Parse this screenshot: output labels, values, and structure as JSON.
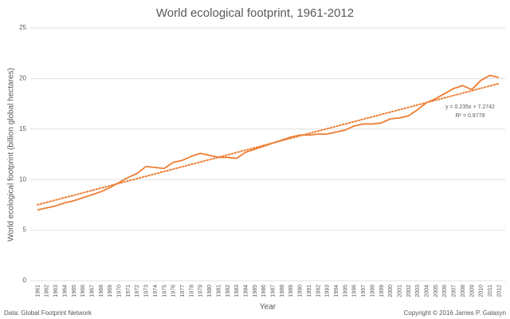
{
  "chart_data": {
    "type": "line",
    "title": "World ecological footprint, 1961-2012",
    "y_label": "World ecological footprint (billion global hectares)",
    "x_label": "Year",
    "source": "Data: Global Footprint Network",
    "copyright": "Copyright © 2016 James P. Galasyn",
    "x": [
      1961,
      1962,
      1963,
      1964,
      1965,
      1966,
      1967,
      1968,
      1969,
      1970,
      1971,
      1972,
      1973,
      1974,
      1975,
      1976,
      1977,
      1978,
      1979,
      1980,
      1981,
      1982,
      1983,
      1984,
      1985,
      1986,
      1987,
      1988,
      1989,
      1990,
      1991,
      1992,
      1993,
      1994,
      1995,
      1996,
      1997,
      1998,
      1999,
      2000,
      2001,
      2002,
      2003,
      2004,
      2005,
      2006,
      2007,
      2008,
      2009,
      2010,
      2011,
      2012
    ],
    "series": [
      {
        "name": "World ecological footprint",
        "color": "#ed7d31",
        "values": [
          7.0,
          7.2,
          7.4,
          7.7,
          7.9,
          8.2,
          8.5,
          8.8,
          9.2,
          9.7,
          10.2,
          10.6,
          11.3,
          11.2,
          11.1,
          11.7,
          11.9,
          12.3,
          12.6,
          12.4,
          12.2,
          12.2,
          12.1,
          12.7,
          13.0,
          13.3,
          13.6,
          13.9,
          14.2,
          14.4,
          14.4,
          14.5,
          14.5,
          14.7,
          14.9,
          15.3,
          15.5,
          15.5,
          15.6,
          16.0,
          16.1,
          16.3,
          16.9,
          17.6,
          18.0,
          18.5,
          19.0,
          19.3,
          18.9,
          19.8,
          20.3,
          20.1
        ]
      }
    ],
    "trendline": {
      "slope": 0.235,
      "intercept": 7.2742,
      "label": "y = 0.235x + 7.2742",
      "r2_label": "R² = 0.9779"
    },
    "xlim": [
      1961,
      2012
    ],
    "ylim": [
      0,
      25
    ],
    "yticks": [
      0,
      5,
      10,
      15,
      20,
      25
    ],
    "grid": true
  }
}
